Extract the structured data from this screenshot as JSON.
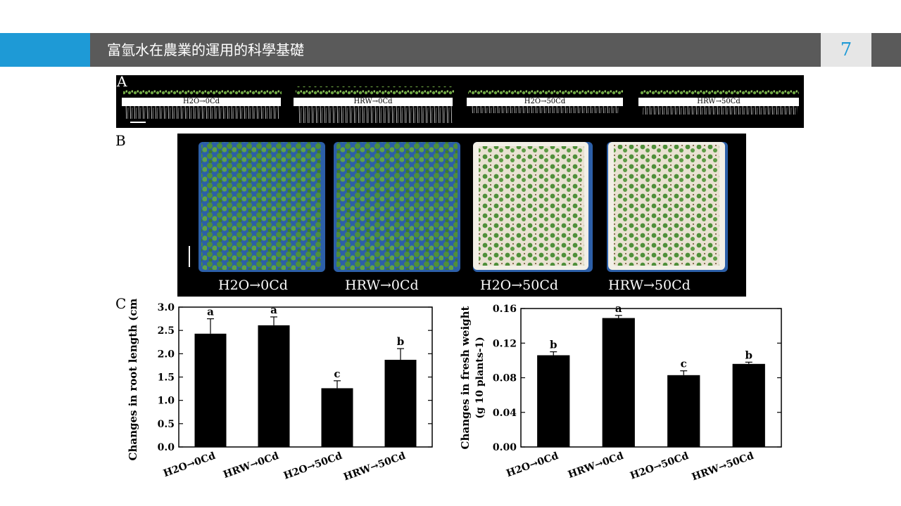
{
  "header": {
    "title": "富氫水在農業的運用的科學基礎",
    "page_number": "7"
  },
  "figure": {
    "panel_a_letter": "A",
    "panel_b_letter": "B",
    "panel_c_letter": "C",
    "panel_a_labels": [
      "H2O→0Cd",
      "HRW→0Cd",
      "H2O→50Cd",
      "HRW→50Cd"
    ],
    "panel_b_labels": [
      "H2O→0Cd",
      "HRW→0Cd",
      "H2O→50Cd",
      "HRW→50Cd"
    ],
    "colors": {
      "plant_green": "#4f8f3a",
      "tray_blue": "#2c5fa8",
      "tray_white": "#f2efe6"
    }
  },
  "chart_data": [
    {
      "type": "bar",
      "categories": [
        "H2O→0Cd",
        "HRW→0Cd",
        "H2O→50Cd",
        "HRW→50Cd"
      ],
      "values": [
        2.43,
        2.61,
        1.26,
        1.87
      ],
      "errors": [
        0.32,
        0.18,
        0.16,
        0.24
      ],
      "letters": [
        "a",
        "a",
        "c",
        "b"
      ],
      "ylabel": "Changes in root length (cm)",
      "ylim": [
        0,
        3.0
      ],
      "yticks": [
        "0.0",
        "0.5",
        "1.0",
        "1.5",
        "2.0",
        "2.5",
        "3.0"
      ],
      "ytick_values": [
        0,
        0.5,
        1.0,
        1.5,
        2.0,
        2.5,
        3.0
      ]
    },
    {
      "type": "bar",
      "categories": [
        "H2O→0Cd",
        "HRW→0Cd",
        "H2O→50Cd",
        "HRW→50Cd"
      ],
      "values": [
        0.106,
        0.149,
        0.083,
        0.096
      ],
      "errors": [
        0.004,
        0.003,
        0.005,
        0.002
      ],
      "letters": [
        "b",
        "a",
        "c",
        "b"
      ],
      "ylabel": "Changes in fresh weight",
      "ylabel2": "(g 10 plants-1)",
      "ylim": [
        0,
        0.16
      ],
      "yticks": [
        "0.00",
        "0.04",
        "0.08",
        "0.12",
        "0.16"
      ],
      "ytick_values": [
        0,
        0.04,
        0.08,
        0.12,
        0.16
      ]
    }
  ]
}
